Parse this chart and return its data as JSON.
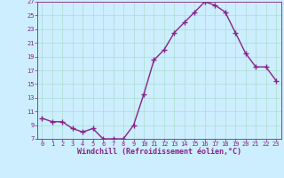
{
  "x": [
    0,
    1,
    2,
    3,
    4,
    5,
    6,
    7,
    8,
    9,
    10,
    11,
    12,
    13,
    14,
    15,
    16,
    17,
    18,
    19,
    20,
    21,
    22,
    23
  ],
  "y": [
    10.0,
    9.5,
    9.5,
    8.5,
    8.0,
    8.5,
    7.0,
    7.0,
    7.0,
    9.0,
    13.5,
    18.5,
    20.0,
    22.5,
    24.0,
    25.5,
    27.0,
    26.5,
    25.5,
    22.5,
    19.5,
    17.5,
    17.5,
    15.5
  ],
  "line_color": "#882288",
  "marker": "+",
  "marker_size": 4,
  "marker_lw": 1.0,
  "bg_color": "#cceeff",
  "grid_color": "#aaddcc",
  "xlabel": "Windchill (Refroidissement éolien,°C)",
  "xlabel_color": "#882288",
  "tick_color": "#882288",
  "spine_color": "#882288",
  "xlim": [
    -0.5,
    23.5
  ],
  "ylim": [
    7,
    27
  ],
  "yticks": [
    7,
    9,
    11,
    13,
    15,
    17,
    19,
    21,
    23,
    25,
    27
  ],
  "xticks": [
    0,
    1,
    2,
    3,
    4,
    5,
    6,
    7,
    8,
    9,
    10,
    11,
    12,
    13,
    14,
    15,
    16,
    17,
    18,
    19,
    20,
    21,
    22,
    23
  ],
  "tick_fontsize": 5.0,
  "xlabel_fontsize": 6.0,
  "line_width": 1.0
}
